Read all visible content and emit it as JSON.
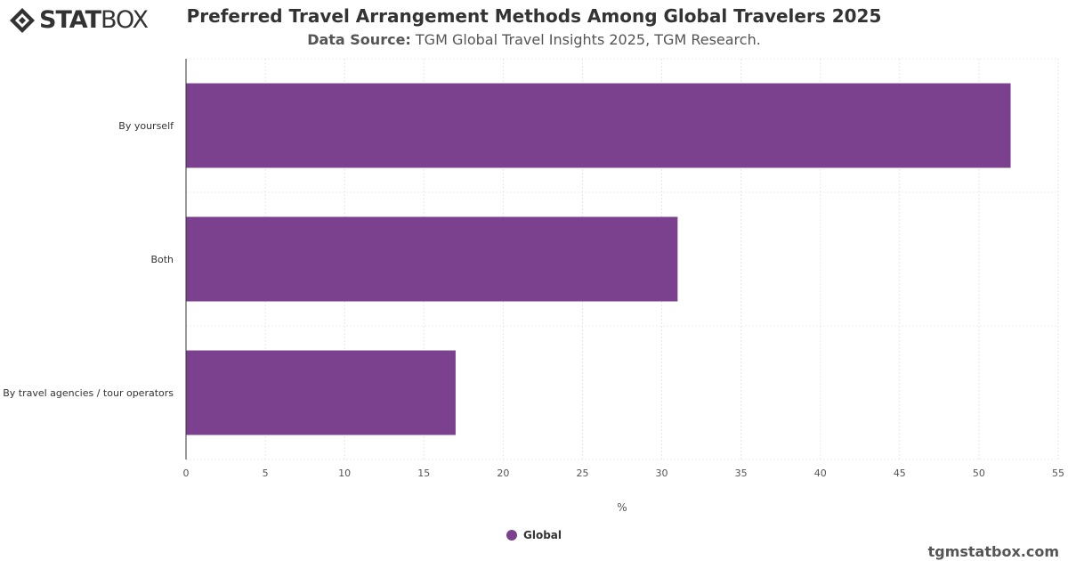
{
  "brand": {
    "logo_bold": "STAT",
    "logo_light": "BOX",
    "credit": "tgmstatbox.com"
  },
  "chart_data": {
    "type": "bar",
    "orientation": "horizontal",
    "title": "Preferred Travel Arrangement Methods Among Global Travelers 2025",
    "subtitle_label": "Data Source:",
    "subtitle_text": "TGM Global Travel Insights 2025, TGM Research.",
    "categories": [
      "By yourself",
      "Both",
      "By travel agencies / tour operators"
    ],
    "series": [
      {
        "name": "Global",
        "values": [
          52,
          31,
          17
        ],
        "color": "#7b418f"
      }
    ],
    "xlabel": "%",
    "ylabel": "",
    "xlim": [
      0,
      55
    ],
    "xticks": [
      "0",
      "5",
      "10",
      "15",
      "20",
      "25",
      "30",
      "35",
      "40",
      "45",
      "50",
      "55"
    ],
    "grid": true,
    "legend_position": "bottom-center"
  }
}
